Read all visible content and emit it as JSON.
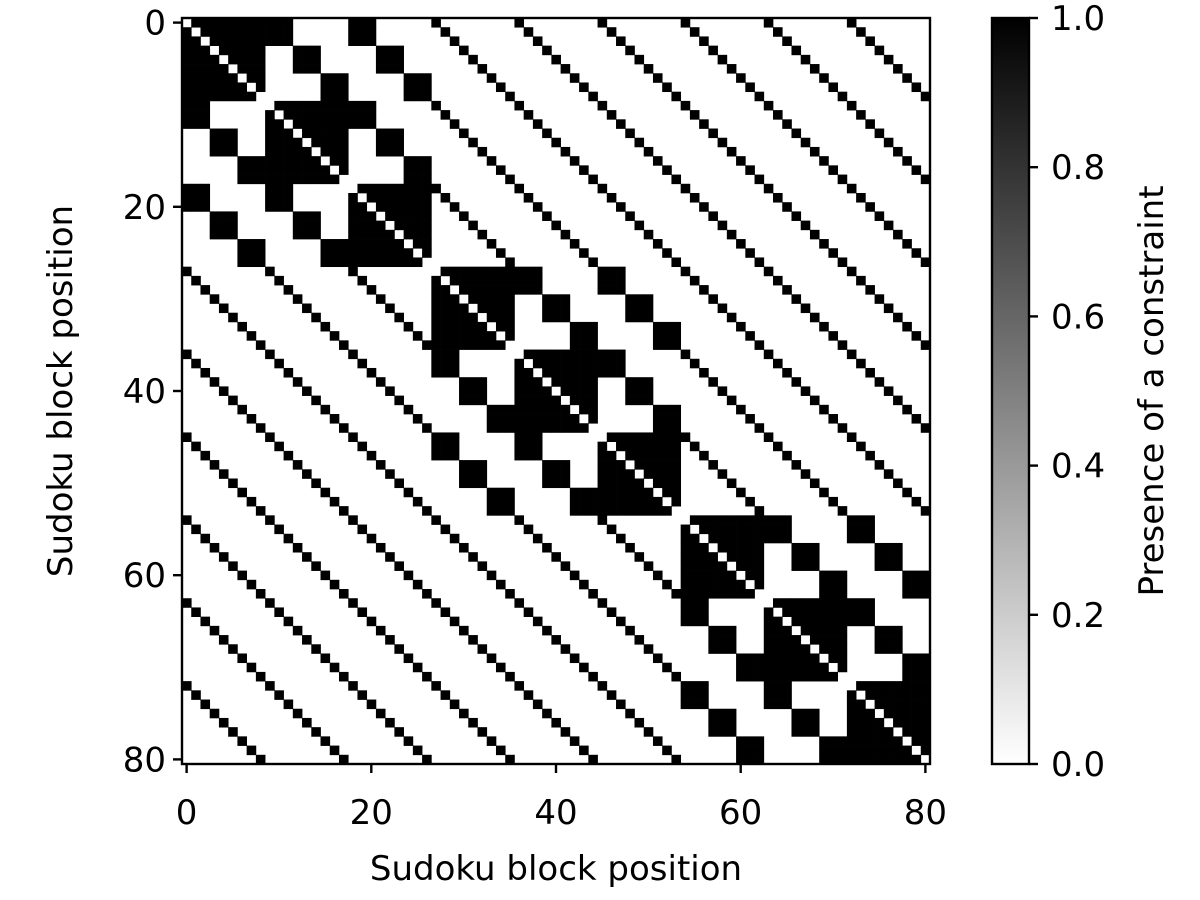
{
  "chart_data": {
    "type": "heatmap",
    "title": "",
    "xlabel": "Sudoku block position",
    "ylabel": "Sudoku block position",
    "n": 81,
    "rule": "cell (i,j) = 1 when i != j and blocks i and j share a row, a column or a 3x3 box of the 9x9 Sudoku grid; 0 otherwise",
    "x_ticks": [
      0,
      20,
      40,
      60,
      80
    ],
    "y_ticks": [
      0,
      20,
      40,
      60,
      80
    ],
    "x_tick_labels": [
      "0",
      "20",
      "40",
      "60",
      "80"
    ],
    "y_tick_labels": [
      "0",
      "20",
      "40",
      "60",
      "80"
    ],
    "colormap": "gray_r",
    "low_color": "#ffffff",
    "high_color": "#000000",
    "colorbar": {
      "label": "Presence of a constraint",
      "range": [
        0.0,
        1.0
      ],
      "ticks": [
        0.0,
        0.2,
        0.4,
        0.6,
        0.8,
        1.0
      ],
      "tick_labels": [
        "0.0",
        "0.2",
        "0.4",
        "0.6",
        "0.8",
        "1.0"
      ]
    },
    "grid": false,
    "legend": "none"
  }
}
